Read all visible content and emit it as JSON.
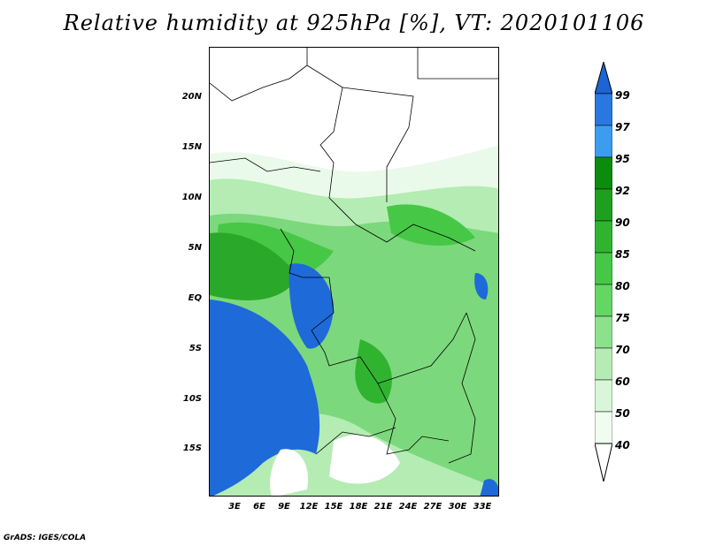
{
  "title": "Relative humidity at 925hPa [%], VT: 2020101106",
  "credit": "GrADS: IGES/COLA",
  "lat_labels": [
    "20N",
    "15N",
    "10N",
    "5N",
    "EQ",
    "5S",
    "10S",
    "15S"
  ],
  "lon_labels": [
    "3E",
    "6E",
    "9E",
    "12E",
    "15E",
    "18E",
    "21E",
    "24E",
    "27E",
    "30E",
    "33E"
  ],
  "colorbar": {
    "levels": [
      "99",
      "97",
      "95",
      "92",
      "90",
      "85",
      "80",
      "75",
      "70",
      "60",
      "50",
      "40"
    ],
    "colors": [
      "#1d64d4",
      "#2878e0",
      "#3c9cf0",
      "#0c8c0c",
      "#1ea01e",
      "#30b430",
      "#46c846",
      "#64d664",
      "#8ce28c",
      "#b4ecb4",
      "#d8f6d8",
      "#f0fcf0",
      "#ffffff"
    ]
  },
  "map_colors": {
    "very_dry": "#ffffff",
    "dry": "#eafaea",
    "moist": "#7cd87c",
    "wet": "#2aa82a",
    "saturated": "#1e6ad8",
    "border": "#000000"
  }
}
